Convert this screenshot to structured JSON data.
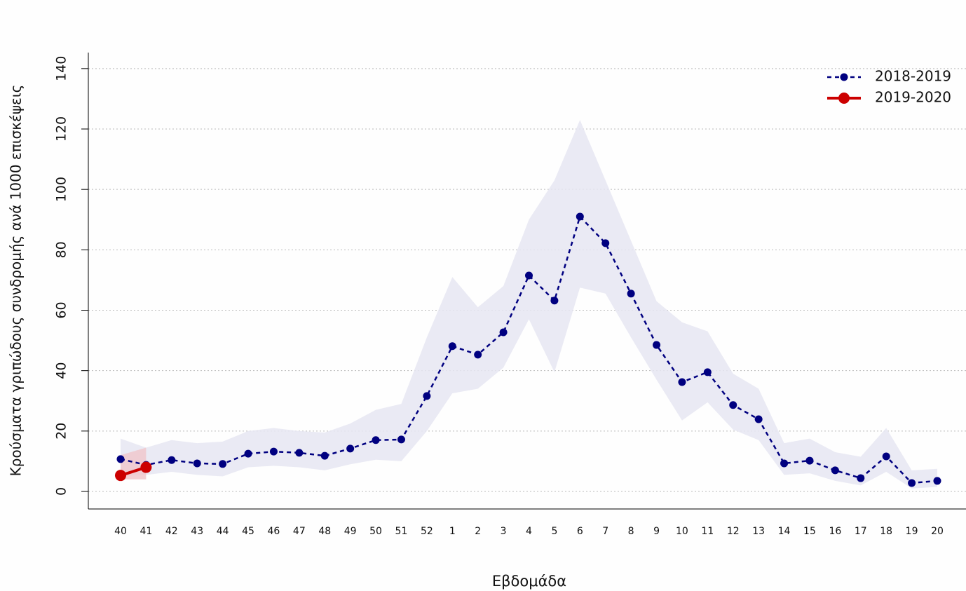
{
  "chart_data": {
    "type": "line",
    "x_label": "Εβδομάδα",
    "y_label": "Κρούσματα γριπώδους συνδρομής ανά 1000 επισκέψεις",
    "categories": [
      "40",
      "41",
      "42",
      "43",
      "44",
      "45",
      "46",
      "47",
      "48",
      "49",
      "50",
      "51",
      "52",
      "1",
      "2",
      "3",
      "4",
      "5",
      "6",
      "7",
      "8",
      "9",
      "10",
      "11",
      "12",
      "13",
      "14",
      "15",
      "16",
      "17",
      "18",
      "19",
      "20"
    ],
    "series": [
      {
        "name": "2018-2019",
        "color": "#000080",
        "band_color": "#e6e6f2",
        "line_style": "dashed",
        "values": [
          10.7,
          8.8,
          10.4,
          9.3,
          9.1,
          12.5,
          13.2,
          12.8,
          11.8,
          14.2,
          17.0,
          17.2,
          31.6,
          48.1,
          45.3,
          52.7,
          71.5,
          63.2,
          91.0,
          82.2,
          65.5,
          48.5,
          36.2,
          39.5,
          28.6,
          23.9,
          9.3,
          10.2,
          7.0,
          4.4,
          11.6,
          2.8,
          3.5
        ],
        "upper": [
          17.5,
          14.5,
          17,
          16,
          16.5,
          20,
          21,
          20,
          19.5,
          22.5,
          27,
          29,
          51,
          71,
          61,
          68,
          90,
          103,
          123,
          103,
          83,
          63,
          56,
          53,
          39,
          34,
          16,
          17.5,
          13,
          11.5,
          21,
          7,
          7.5
        ],
        "lower": [
          5,
          5.5,
          6.5,
          5.5,
          5,
          8,
          8.5,
          8,
          7,
          9,
          10.5,
          10,
          20,
          32.5,
          34,
          41,
          57,
          39.5,
          67.5,
          65.5,
          51,
          37,
          23.5,
          29.5,
          20.5,
          17,
          5.5,
          6,
          3.5,
          2,
          6.5,
          1,
          1.5
        ]
      },
      {
        "name": "2019-2020",
        "color": "#cc0000",
        "band_color": "#f0c8cc",
        "line_style": "solid",
        "values": [
          5.3,
          8.0,
          null,
          null,
          null,
          null,
          null,
          null,
          null,
          null,
          null,
          null,
          null,
          null,
          null,
          null,
          null,
          null,
          null,
          null,
          null,
          null,
          null,
          null,
          null,
          null,
          null,
          null,
          null,
          null,
          null,
          null,
          null
        ],
        "upper": [
          12,
          14.5,
          null,
          null,
          null,
          null,
          null,
          null,
          null,
          null,
          null,
          null,
          null,
          null,
          null,
          null,
          null,
          null,
          null,
          null,
          null,
          null,
          null,
          null,
          null,
          null,
          null,
          null,
          null,
          null,
          null,
          null,
          null
        ],
        "lower": [
          4,
          4,
          null,
          null,
          null,
          null,
          null,
          null,
          null,
          null,
          null,
          null,
          null,
          null,
          null,
          null,
          null,
          null,
          null,
          null,
          null,
          null,
          null,
          null,
          null,
          null,
          null,
          null,
          null,
          null,
          null,
          null,
          null
        ]
      }
    ],
    "ylim": [
      -5.8,
      145.3
    ],
    "yticks": [
      0,
      20,
      40,
      60,
      80,
      100,
      120,
      140
    ],
    "grid": true,
    "legend": "top-right"
  }
}
